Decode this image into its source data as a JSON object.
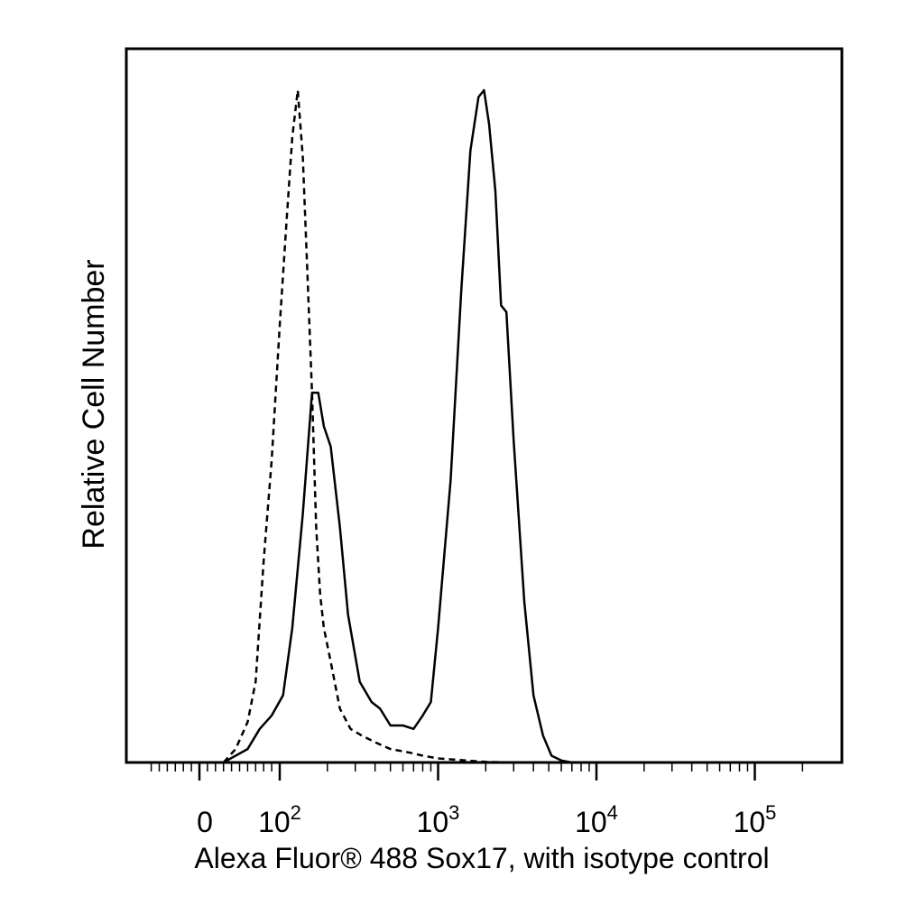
{
  "chart_data": {
    "type": "line",
    "subtype": "flow-cytometry-histogram",
    "xlabel": "Alexa Fluor® 488 Sox17, with isotype control",
    "ylabel": "Relative Cell Number",
    "x_scale": "biexponential",
    "xlim": [
      -60,
      250000
    ],
    "ylim": [
      0,
      1
    ],
    "grid": false,
    "legend": "none",
    "x_tick_labels": [
      {
        "value": 0,
        "label": "0"
      },
      {
        "value": 100,
        "base": "10",
        "exp": "2"
      },
      {
        "value": 1000,
        "base": "10",
        "exp": "3"
      },
      {
        "value": 10000,
        "base": "10",
        "exp": "4"
      },
      {
        "value": 100000,
        "base": "10",
        "exp": "5"
      }
    ],
    "series": [
      {
        "style": "solid",
        "x": [
          30,
          60,
          75,
          90,
          105,
          120,
          140,
          160,
          175,
          190,
          210,
          240,
          270,
          320,
          380,
          430,
          500,
          600,
          700,
          800,
          900,
          1000,
          1200,
          1400,
          1600,
          1800,
          1950,
          2100,
          2300,
          2500,
          2700,
          3000,
          3500,
          4000,
          4600,
          5200,
          6000,
          7000
        ],
        "y": [
          0,
          0.02,
          0.05,
          0.07,
          0.1,
          0.2,
          0.37,
          0.55,
          0.55,
          0.5,
          0.47,
          0.35,
          0.22,
          0.12,
          0.09,
          0.08,
          0.055,
          0.055,
          0.05,
          0.07,
          0.09,
          0.2,
          0.42,
          0.7,
          0.91,
          0.99,
          1.0,
          0.95,
          0.85,
          0.68,
          0.67,
          0.48,
          0.24,
          0.1,
          0.04,
          0.01,
          0.003,
          0
        ]
      },
      {
        "style": "dashed",
        "x": [
          30,
          45,
          60,
          70,
          80,
          90,
          100,
          110,
          120,
          130,
          140,
          150,
          160,
          170,
          180,
          190,
          210,
          240,
          280,
          330,
          400,
          500,
          650,
          800,
          1000,
          1500,
          2000,
          3000
        ],
        "y": [
          0,
          0.02,
          0.06,
          0.12,
          0.3,
          0.45,
          0.65,
          0.8,
          0.93,
          1.0,
          0.9,
          0.72,
          0.55,
          0.35,
          0.25,
          0.2,
          0.15,
          0.08,
          0.05,
          0.04,
          0.03,
          0.02,
          0.015,
          0.01,
          0.006,
          0.003,
          0.001,
          0
        ]
      }
    ]
  }
}
